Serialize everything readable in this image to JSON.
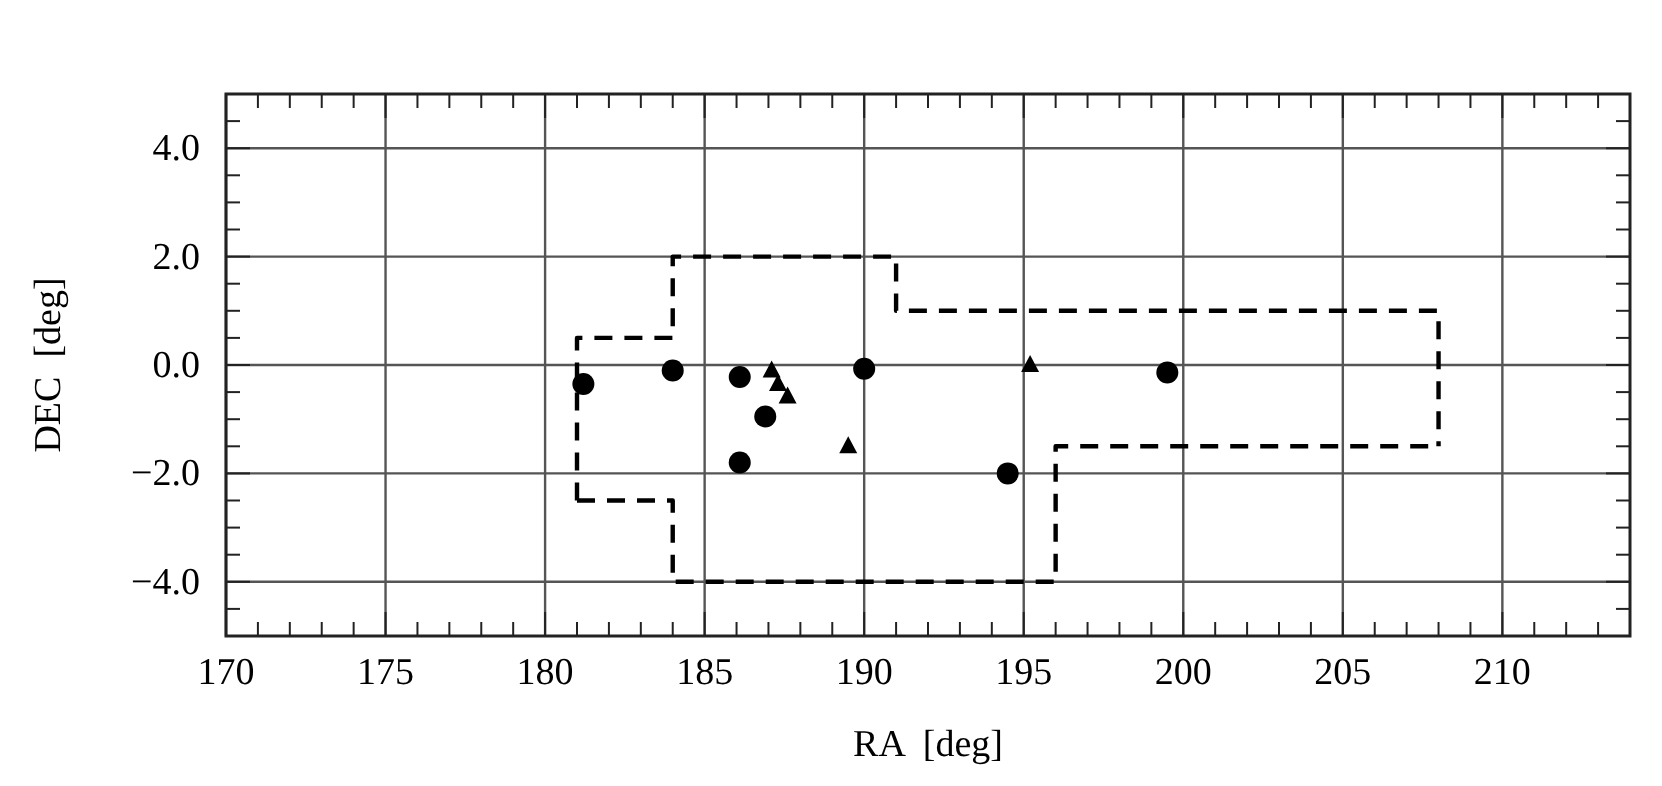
{
  "chart_data": {
    "type": "scatter",
    "xlabel": "RA  [deg]",
    "ylabel": "DEC  [deg]",
    "xlim": [
      170,
      214
    ],
    "ylim": [
      -5,
      5
    ],
    "xticks": [
      170,
      {
        "value": 171,
        "label": null
      },
      {
        "value": 172,
        "label": null
      },
      {
        "value": 173,
        "label": null
      },
      {
        "value": 174,
        "label": null
      },
      175,
      {
        "value": 176,
        "label": null
      },
      {
        "value": 177,
        "label": null
      },
      {
        "value": 178,
        "label": null
      },
      {
        "value": 179,
        "label": null
      },
      180,
      {
        "value": 181,
        "label": null
      },
      {
        "value": 182,
        "label": null
      },
      {
        "value": 183,
        "label": null
      },
      {
        "value": 184,
        "label": null
      },
      185,
      {
        "value": 186,
        "label": null
      },
      {
        "value": 187,
        "label": null
      },
      {
        "value": 188,
        "label": null
      },
      {
        "value": 189,
        "label": null
      },
      190,
      {
        "value": 191,
        "label": null
      },
      {
        "value": 192,
        "label": null
      },
      {
        "value": 193,
        "label": null
      },
      {
        "value": 194,
        "label": null
      },
      195,
      {
        "value": 196,
        "label": null
      },
      {
        "value": 197,
        "label": null
      },
      {
        "value": 198,
        "label": null
      },
      {
        "value": 199,
        "label": null
      },
      200,
      {
        "value": 201,
        "label": null
      },
      {
        "value": 202,
        "label": null
      },
      {
        "value": 203,
        "label": null
      },
      {
        "value": 204,
        "label": null
      },
      205,
      {
        "value": 206,
        "label": null
      },
      {
        "value": 207,
        "label": null
      },
      {
        "value": 208,
        "label": null
      },
      {
        "value": 209,
        "label": null
      },
      210,
      {
        "value": 211,
        "label": null
      },
      {
        "value": 212,
        "label": null
      },
      {
        "value": 213,
        "label": null
      }
    ],
    "yticks": [
      {
        "value": -4.5,
        "label": null
      },
      {
        "value": -4,
        "label": "−4.0"
      },
      {
        "value": -3.5,
        "label": null
      },
      {
        "value": -3,
        "label": null
      },
      {
        "value": -2.5,
        "label": null
      },
      {
        "value": -2,
        "label": "−2.0"
      },
      {
        "value": -1.5,
        "label": null
      },
      {
        "value": -1,
        "label": null
      },
      {
        "value": -0.5,
        "label": null
      },
      {
        "value": 0,
        "label": "0.0"
      },
      {
        "value": 0.5,
        "label": null
      },
      {
        "value": 1,
        "label": null
      },
      {
        "value": 1.5,
        "label": null
      },
      {
        "value": 2,
        "label": "2.0"
      },
      {
        "value": 2.5,
        "label": null
      },
      {
        "value": 3,
        "label": null
      },
      {
        "value": 3.5,
        "label": null
      },
      {
        "value": 4,
        "label": "4.0"
      },
      {
        "value": 4.5,
        "label": null
      }
    ],
    "grid": true,
    "series": [
      {
        "type": "line",
        "color": "#000000",
        "marker": "none",
        "line_style": "dashed",
        "x": [
          181,
          181,
          184,
          184,
          191,
          191,
          208,
          208
        ],
        "values": [
          -2.5,
          0.5,
          0.5,
          2,
          2,
          1,
          1,
          -1.5
        ]
      },
      {
        "type": "line",
        "color": "#000000",
        "marker": "none",
        "line_style": "dashed",
        "x": [
          181,
          184,
          184,
          196,
          196,
          208
        ],
        "values": [
          -2.5,
          -2.5,
          -4,
          -4,
          -1.5,
          -1.5
        ]
      },
      {
        "color": "#000000",
        "marker": "circle",
        "x": [
          181.2,
          184.0,
          186.1,
          186.9,
          186.1,
          190.0,
          194.5,
          199.5
        ],
        "values": [
          -0.35,
          -0.1,
          -0.22,
          -0.95,
          -1.8,
          -0.07,
          -2.0,
          -0.14
        ]
      },
      {
        "color": "#000000",
        "marker": "triangle",
        "x": [
          187.1,
          187.3,
          187.6,
          189.5,
          195.2
        ],
        "values": [
          -0.1,
          -0.35,
          -0.58,
          -1.5,
          0.0
        ]
      }
    ]
  }
}
